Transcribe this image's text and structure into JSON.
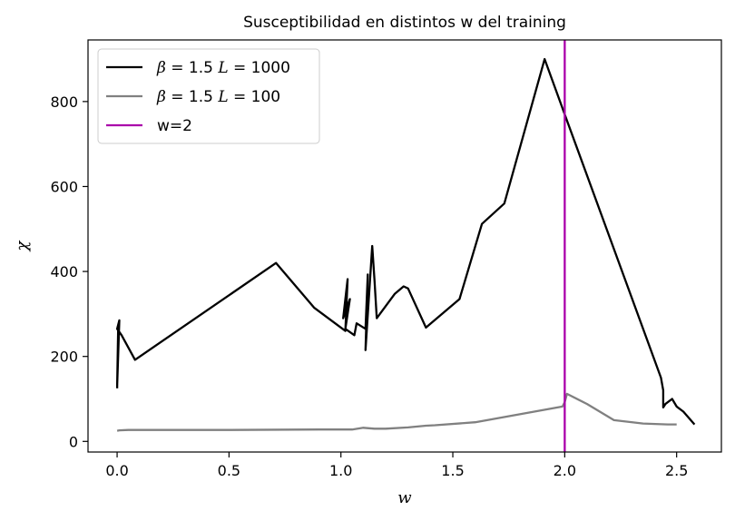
{
  "chart_data": {
    "type": "line",
    "title": "Susceptibilidad en distintos w del training",
    "xlabel": "w",
    "ylabel": "χ",
    "xlim": [
      -0.13,
      2.7
    ],
    "ylim": [
      -25,
      945
    ],
    "xticks": [
      "0.0",
      "0.5",
      "1.0",
      "1.5",
      "2.0",
      "2.5"
    ],
    "xtick_values": [
      0,
      0.5,
      1.0,
      1.5,
      2.0,
      2.5
    ],
    "yticks": [
      "0",
      "200",
      "400",
      "600",
      "800"
    ],
    "ytick_values": [
      0,
      200,
      400,
      600,
      800
    ],
    "grid": false,
    "legend_position": "top-left",
    "series": [
      {
        "name": "β = 1.5 L = 1000",
        "legend_parts": [
          [
            "β",
            true
          ],
          [
            " = 1.5 ",
            false
          ],
          [
            "L",
            true
          ],
          [
            " = 1000",
            false
          ]
        ],
        "color": "#000000",
        "x": [
          0.0,
          0.005,
          0.0,
          0.01,
          0.0,
          0.02,
          0.08,
          0.71,
          0.88,
          1.02,
          1.03,
          1.01,
          1.04,
          1.02,
          1.06,
          1.07,
          1.11,
          1.12,
          1.11,
          1.14,
          1.15,
          1.16,
          1.24,
          1.28,
          1.3,
          1.38,
          1.53,
          1.63,
          1.73,
          1.91,
          2.0,
          2.43,
          2.44,
          2.44,
          2.45,
          2.48,
          2.5,
          2.53,
          2.58
        ],
        "y": [
          125,
          275,
          130,
          285,
          265,
          250,
          192,
          420,
          315,
          260,
          382,
          290,
          335,
          265,
          250,
          278,
          265,
          393,
          215,
          460,
          380,
          290,
          347,
          365,
          360,
          268,
          335,
          512,
          560,
          900,
          770,
          150,
          120,
          80,
          88,
          100,
          82,
          70,
          40
        ]
      },
      {
        "name": "β = 1.5 L = 100",
        "legend_parts": [
          [
            "β",
            true
          ],
          [
            " = 1.5 ",
            false
          ],
          [
            "L",
            true
          ],
          [
            " = 100",
            false
          ]
        ],
        "color": "#808080",
        "x": [
          0.0,
          0.01,
          0.05,
          0.5,
          0.9,
          1.05,
          1.1,
          1.15,
          1.2,
          1.3,
          1.38,
          1.42,
          1.6,
          1.99,
          2.0,
          2.01,
          2.1,
          2.22,
          2.35,
          2.46,
          2.49,
          2.5
        ],
        "y": [
          25,
          26,
          27,
          27,
          28,
          28,
          32,
          30,
          30,
          33,
          37,
          38,
          45,
          82,
          92,
          112,
          88,
          50,
          42,
          40,
          40,
          40
        ]
      }
    ],
    "vlines": [
      {
        "name": "w=2",
        "x": 2.0,
        "color": "#aa00aa"
      }
    ]
  }
}
